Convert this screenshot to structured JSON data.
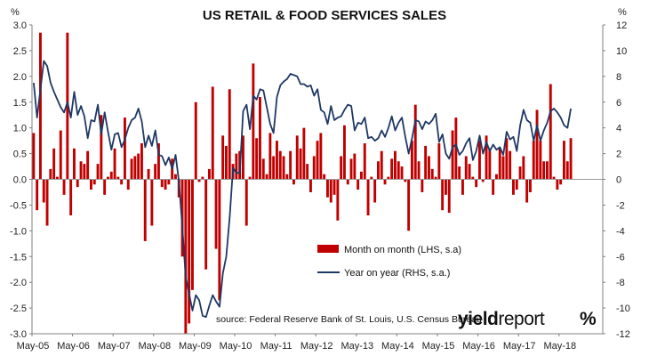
{
  "colors": {
    "bar": "#c00000",
    "line": "#1f3864",
    "zero": "#9a9a9a",
    "axis": "#808080",
    "logo_accent": "#c8102e"
  },
  "header": {
    "title": "US RETAIL & FOOD SERVICES SALES",
    "left_unit": "%",
    "right_unit": "%"
  },
  "legend": {
    "bar_label": "Month on month (LHS, s.a)",
    "line_label": "Year on year (RHS, s.a.)"
  },
  "footer": {
    "source": "source: Federal Reserve Bank of St. Louis, U.S. Census Bureau",
    "logo_yield": "yield",
    "logo_report": "report",
    "logo_symbol": "%"
  },
  "chart_data": {
    "type": "bar+line",
    "title": "US RETAIL & FOOD SERVICES SALES",
    "x_start": "May-05",
    "x_ticks": [
      "May-05",
      "May-06",
      "May-07",
      "May-08",
      "May-09",
      "May-10",
      "May-11",
      "May-12",
      "May-13",
      "May-14",
      "May-15",
      "May-16",
      "May-17",
      "May-18"
    ],
    "left_axis": {
      "unit": "%",
      "min": -3.0,
      "max": 3.0,
      "step": 0.5,
      "tick_labels": [
        "3.0",
        "2.5",
        "2.0",
        "1.5",
        "1.0",
        "0.5",
        "0.0",
        "-0.5",
        "-1.0",
        "-1.5",
        "-2.0",
        "-2.5",
        "-3.0"
      ]
    },
    "right_axis": {
      "unit": "%",
      "min": -12,
      "max": 12,
      "step": 2,
      "tick_labels": [
        "12",
        "10",
        "8",
        "6",
        "4",
        "2",
        "0",
        "-2",
        "-4",
        "-6",
        "-8",
        "-10",
        "-12"
      ]
    },
    "series": [
      {
        "name": "Month on month (LHS, s.a)",
        "type": "bar",
        "axis": "left",
        "values": [
          0.9,
          -0.6,
          2.85,
          -0.45,
          -0.9,
          0.2,
          0.6,
          0.05,
          0.95,
          -0.3,
          2.85,
          -0.7,
          0.6,
          -0.15,
          0.35,
          0.3,
          0.55,
          -0.2,
          -0.1,
          0.3,
          1.25,
          -0.3,
          0.05,
          0.15,
          0.6,
          0.05,
          -0.1,
          1.2,
          -0.2,
          0.4,
          0.45,
          0.5,
          0.7,
          -1.2,
          0.2,
          -0.9,
          0.3,
          0.7,
          -0.15,
          -0.2,
          -0.1,
          0.4,
          0.1,
          -0.35,
          -1.5,
          -3.0,
          -2.8,
          -2.15,
          1.5,
          -0.05,
          0.05,
          -1.75,
          0.2,
          1.8,
          -1.35,
          -2.35,
          0.85,
          0.65,
          1.75,
          0.3,
          0.5,
          0.55,
          0.85,
          -0.9,
          0.05,
          2.25,
          0.8,
          1.6,
          0.4,
          0.1,
          0.9,
          0.45,
          0.75,
          0.55,
          0.45,
          0.1,
          0.55,
          -0.1,
          0.85,
          0.6,
          1.0,
          0.3,
          -0.25,
          0.45,
          0.75,
          0.9,
          0.1,
          -0.35,
          -0.45,
          -0.3,
          -0.8,
          0.45,
          1.05,
          -0.1,
          0.4,
          0.5,
          -0.2,
          0.15,
          0.7,
          -0.7,
          0.05,
          -0.45,
          0.35,
          0.55,
          -0.1,
          0.05,
          0.4,
          0.55,
          0.35,
          0.25,
          -0.05,
          -1.0,
          0.75,
          1.45,
          0.35,
          -0.25,
          0.65,
          0.45,
          0.2,
          0.05,
          0.7,
          -0.6,
          -0.3,
          -0.65,
          0.95,
          1.2,
          0.25,
          -0.3,
          0.45,
          0.3,
          0.05,
          -0.15,
          0.75,
          -0.05,
          0.85,
          0.6,
          -0.3,
          0.1,
          0.6,
          0.45,
          0.8,
          0.55,
          -0.3,
          -0.2,
          0.25,
          0.45,
          -0.45,
          -0.25,
          0.75,
          1.35,
          0.75,
          0.35,
          0.35,
          1.85,
          0.05,
          -0.2,
          -0.1,
          0.75,
          0.35,
          0.8
        ]
      },
      {
        "name": "Year on year (RHS, s.a.)",
        "type": "line",
        "axis": "right",
        "values": [
          7.5,
          4.8,
          7.0,
          9.2,
          8.8,
          7.5,
          6.8,
          6.2,
          5.6,
          5.2,
          6.0,
          4.8,
          6.8,
          5.0,
          5.7,
          4.9,
          3.2,
          4.6,
          4.5,
          5.8,
          3.5,
          5.2,
          3.7,
          2.3,
          3.5,
          3.6,
          2.5,
          3.1,
          4.0,
          4.6,
          4.8,
          5.5,
          4.5,
          2.5,
          3.4,
          2.6,
          3.8,
          1.9,
          1.8,
          1.1,
          1.7,
          0.8,
          1.9,
          -0.2,
          -3.7,
          -7.6,
          -8.9,
          -10.2,
          -9.0,
          -9.4,
          -10.6,
          -10.7,
          -9.8,
          -9.0,
          -9.5,
          -9.9,
          -7.3,
          -6.0,
          -3.0,
          0.9,
          0.5,
          0.5,
          5.3,
          5.8,
          3.9,
          6.5,
          6.2,
          7.0,
          6.9,
          5.6,
          4.3,
          3.6,
          6.4,
          7.3,
          7.6,
          7.8,
          8.2,
          8.1,
          8.0,
          7.4,
          7.4,
          7.2,
          7.3,
          6.5,
          7.0,
          5.4,
          5.2,
          4.3,
          5.7,
          4.6,
          4.8,
          4.9,
          5.4,
          5.8,
          5.7,
          3.8,
          4.4,
          4.3,
          4.8,
          3.2,
          3.3,
          3.0,
          3.2,
          3.8,
          3.3,
          4.0,
          4.9,
          3.8,
          4.4,
          4.8,
          3.3,
          2.0,
          3.2,
          4.6,
          4.5,
          3.9,
          4.5,
          4.3,
          4.6,
          5.1,
          2.9,
          3.5,
          2.0,
          1.6,
          2.5,
          2.7,
          1.9,
          2.2,
          2.8,
          3.2,
          1.5,
          2.2,
          3.4,
          2.0,
          2.9,
          2.2,
          2.7,
          2.3,
          2.5,
          1.9,
          3.7,
          3.1,
          3.3,
          2.2,
          4.2,
          5.4,
          4.6,
          4.4,
          3.0,
          4.2,
          3.0,
          3.8,
          4.4,
          5.3,
          5.5,
          5.2,
          4.8,
          4.2,
          4.0,
          5.5
        ]
      }
    ],
    "grid": false,
    "legend_position": "bottom-center"
  }
}
